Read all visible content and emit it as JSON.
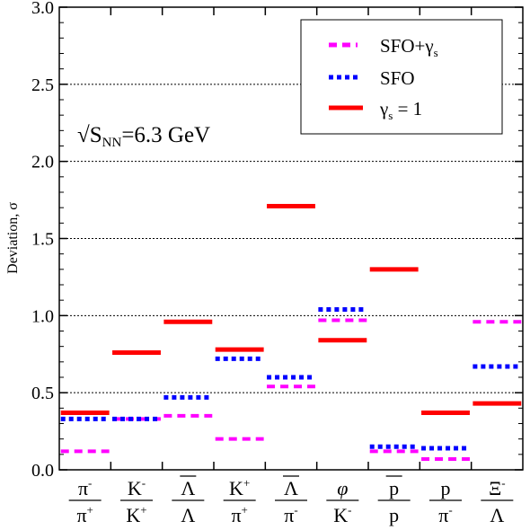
{
  "chart_data": {
    "type": "scatter",
    "ylabel": "Deviation, σ",
    "ylim": [
      0,
      3.0
    ],
    "yticks": [
      "0.0",
      "0.5",
      "1.0",
      "1.5",
      "2.0",
      "2.5",
      "3.0"
    ],
    "grid": "horizontal dotted",
    "annotation": {
      "sqrt": "√",
      "base": "S",
      "sub": "NN",
      "rest": "=6.3 GeV"
    },
    "legend_position": "top-right",
    "categories": [
      {
        "num": "π",
        "num_sup": "-",
        "den": "π",
        "den_sup": "+",
        "italic": false,
        "overbar": false
      },
      {
        "num": "K",
        "num_sup": "-",
        "den": "K",
        "den_sup": "+",
        "italic": false,
        "overbar": false
      },
      {
        "num": "Λ",
        "num_sup": "",
        "den": "Λ",
        "den_sup": "",
        "italic": false,
        "overbar": true
      },
      {
        "num": "K",
        "num_sup": "+",
        "den": "π",
        "den_sup": "+",
        "italic": false,
        "overbar": false
      },
      {
        "num": "Λ",
        "num_sup": "",
        "den": "π",
        "den_sup": "-",
        "italic": false,
        "overbar": true
      },
      {
        "num": "φ",
        "num_sup": "",
        "den": "K",
        "den_sup": "-",
        "italic": true,
        "overbar": false
      },
      {
        "num": "p",
        "num_sup": "",
        "den": "p",
        "den_sup": "",
        "italic": false,
        "overbar": true
      },
      {
        "num": "p",
        "num_sup": "",
        "den": "π",
        "den_sup": "-",
        "italic": false,
        "overbar": false
      },
      {
        "num": "Ξ",
        "num_sup": "-",
        "den": "Λ",
        "den_sup": "",
        "italic": false,
        "overbar": false
      }
    ],
    "series": [
      {
        "name": "SFO+γs",
        "legend_base": "SFO+γ",
        "legend_sub": "s",
        "color": "#ff00ff",
        "style": "dashed",
        "values": [
          0.12,
          0.33,
          0.35,
          0.2,
          0.54,
          0.97,
          0.12,
          0.07,
          0.96
        ]
      },
      {
        "name": "SFO",
        "legend_base": "SFO",
        "legend_sub": "",
        "color": "#0000ff",
        "style": "dotted",
        "values": [
          0.33,
          0.33,
          0.47,
          0.72,
          0.6,
          1.04,
          0.15,
          0.14,
          0.67
        ]
      },
      {
        "name": "γs = 1",
        "legend_base": "γ",
        "legend_sub": "s",
        "legend_rest": " = 1",
        "color": "#ff0000",
        "style": "solid",
        "values": [
          0.37,
          0.76,
          0.96,
          0.78,
          1.71,
          0.84,
          1.3,
          0.37,
          0.43
        ]
      }
    ]
  }
}
